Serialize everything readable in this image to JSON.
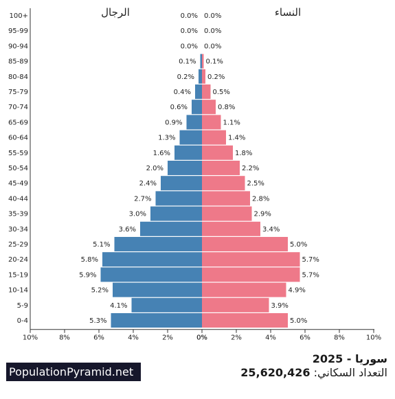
{
  "chart_data": {
    "type": "bar",
    "orientation": "horizontal",
    "left_label": "الرجال",
    "right_label": "النساء",
    "xlim": [
      -10,
      10
    ],
    "x_ticks": [
      "10%",
      "8%",
      "6%",
      "4%",
      "2%",
      "0%",
      "0%",
      "2%",
      "4%",
      "6%",
      "8%",
      "10%"
    ],
    "categories": [
      "100+",
      "95-99",
      "90-94",
      "85-89",
      "80-84",
      "75-79",
      "70-74",
      "65-69",
      "60-64",
      "55-59",
      "50-54",
      "45-49",
      "40-44",
      "35-39",
      "30-34",
      "25-29",
      "20-24",
      "15-19",
      "10-14",
      "5-9",
      "0-4"
    ],
    "series": [
      {
        "name": "الرجال",
        "color": "#4682b4",
        "values": [
          0.0,
          0.0,
          0.0,
          0.1,
          0.2,
          0.4,
          0.6,
          0.9,
          1.3,
          1.6,
          2.0,
          2.4,
          2.7,
          3.0,
          3.6,
          5.1,
          5.8,
          5.9,
          5.2,
          4.1,
          5.3
        ],
        "labels": [
          "0.0%",
          "0.0%",
          "0.0%",
          "0.1%",
          "0.2%",
          "0.4%",
          "0.6%",
          "0.9%",
          "1.3%",
          "1.6%",
          "2.0%",
          "2.4%",
          "2.7%",
          "3.0%",
          "3.6%",
          "5.1%",
          "5.8%",
          "5.9%",
          "5.2%",
          "4.1%",
          "5.3%"
        ]
      },
      {
        "name": "النساء",
        "color": "#ee7989",
        "values": [
          0.0,
          0.0,
          0.0,
          0.1,
          0.2,
          0.5,
          0.8,
          1.1,
          1.4,
          1.8,
          2.2,
          2.5,
          2.8,
          2.9,
          3.4,
          5.0,
          5.7,
          5.7,
          4.9,
          3.9,
          5.0
        ],
        "labels": [
          "0.0%",
          "0.0%",
          "0.0%",
          "0.1%",
          "0.2%",
          "0.5%",
          "0.8%",
          "1.1%",
          "1.4%",
          "1.8%",
          "2.2%",
          "2.5%",
          "2.8%",
          "2.9%",
          "3.4%",
          "5.0%",
          "5.7%",
          "5.7%",
          "4.9%",
          "3.9%",
          "5.0%"
        ]
      }
    ]
  },
  "footer": {
    "title": "سوريا - 2025",
    "population_label": "التعداد السكاني:",
    "population_value": "25,620,426",
    "brand": "PopulationPyramid.net"
  }
}
